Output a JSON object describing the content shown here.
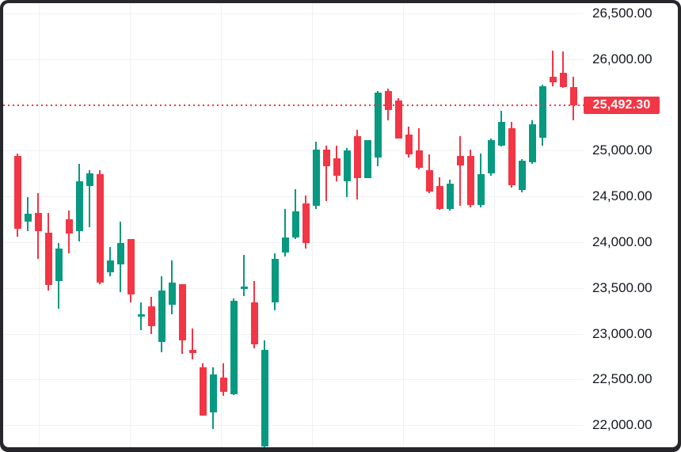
{
  "window": {
    "background": "#ffffff",
    "frame_border_color": "#26262b",
    "grid_color": "#f0f1f4",
    "text_color": "#131722"
  },
  "price_line": {
    "value": 25492.3,
    "label": "25,492.30",
    "line_color": "#f23645",
    "tag_background": "#f23645",
    "tag_text_color": "#ffffff"
  },
  "price_scale": {
    "side": "right",
    "labels": [
      "26,500.00",
      "26,000.00",
      "25,000.00",
      "24,500.00",
      "24,000.00",
      "23,500.00",
      "23,000.00",
      "22,500.00",
      "22,000.00"
    ],
    "values": [
      26500,
      26000,
      25000,
      24500,
      24000,
      23500,
      23000,
      22500,
      22000
    ]
  },
  "chart_data": {
    "type": "candlestick",
    "title": "",
    "xlabel": "",
    "ylabel": "price",
    "up_color": "#089981",
    "down_color": "#f23645",
    "grid": true,
    "legend_position": "none",
    "ylim": [
      21760,
      26610
    ],
    "y_tick_step": 500,
    "last_price": 25492.3,
    "candle_format": [
      "open",
      "high",
      "low",
      "close"
    ],
    "candles": [
      [
        24940,
        24970,
        24060,
        24145
      ],
      [
        24225,
        24490,
        24120,
        24310
      ],
      [
        24320,
        24535,
        23815,
        24120
      ],
      [
        24105,
        24320,
        23470,
        23530
      ],
      [
        23575,
        23990,
        23270,
        23930
      ],
      [
        24250,
        24345,
        23880,
        24095
      ],
      [
        24120,
        24855,
        24010,
        24665
      ],
      [
        24615,
        24785,
        24165,
        24750
      ],
      [
        24745,
        24785,
        23540,
        23560
      ],
      [
        23670,
        23945,
        23625,
        23800
      ],
      [
        23755,
        24225,
        23455,
        23990
      ],
      [
        24035,
        24035,
        23340,
        23430
      ],
      [
        23185,
        23340,
        23040,
        23210
      ],
      [
        23300,
        23400,
        22995,
        23080
      ],
      [
        22910,
        23625,
        22795,
        23470
      ],
      [
        23315,
        23800,
        23210,
        23560
      ],
      [
        23540,
        23540,
        22780,
        22925
      ],
      [
        22820,
        23055,
        22720,
        22785
      ],
      [
        22630,
        22675,
        22105,
        22105
      ],
      [
        22145,
        22630,
        21955,
        22560
      ],
      [
        22520,
        22675,
        22320,
        22365
      ],
      [
        22335,
        23385,
        22335,
        23360
      ],
      [
        23490,
        23860,
        23410,
        23515
      ],
      [
        23340,
        23575,
        22840,
        22885
      ],
      [
        21765,
        22925,
        21760,
        22820
      ],
      [
        23340,
        23880,
        23255,
        23815
      ],
      [
        23885,
        24360,
        23845,
        24050
      ],
      [
        24050,
        24580,
        24035,
        24335
      ],
      [
        24425,
        24510,
        23930,
        23990
      ],
      [
        24395,
        25100,
        24360,
        25010
      ],
      [
        25010,
        25055,
        24450,
        24830
      ],
      [
        24915,
        25055,
        24665,
        24725
      ],
      [
        24665,
        25030,
        24490,
        25005
      ],
      [
        25160,
        25230,
        24465,
        24700
      ],
      [
        24700,
        25115,
        24700,
        25115
      ],
      [
        24925,
        25650,
        24830,
        25635
      ],
      [
        25650,
        25680,
        25330,
        25445
      ],
      [
        25550,
        25575,
        25135,
        25135
      ],
      [
        25175,
        25260,
        24925,
        24960
      ],
      [
        25005,
        25245,
        24795,
        24815
      ],
      [
        24785,
        24960,
        24535,
        24555
      ],
      [
        24615,
        24710,
        24355,
        24360
      ],
      [
        24360,
        24685,
        24345,
        24640
      ],
      [
        24940,
        25160,
        24395,
        24840
      ],
      [
        24940,
        25010,
        24380,
        24405
      ],
      [
        24405,
        24970,
        24380,
        24745
      ],
      [
        24750,
        25135,
        24725,
        25115
      ],
      [
        25055,
        25435,
        25045,
        25315
      ],
      [
        25245,
        25315,
        24595,
        24620
      ],
      [
        24570,
        24910,
        24545,
        24890
      ],
      [
        24875,
        25330,
        24855,
        25290
      ],
      [
        25140,
        25720,
        25055,
        25705
      ],
      [
        25810,
        26095,
        25705,
        25745
      ],
      [
        25850,
        26085,
        25680,
        25695
      ],
      [
        25695,
        25810,
        25330,
        25490
      ]
    ]
  }
}
